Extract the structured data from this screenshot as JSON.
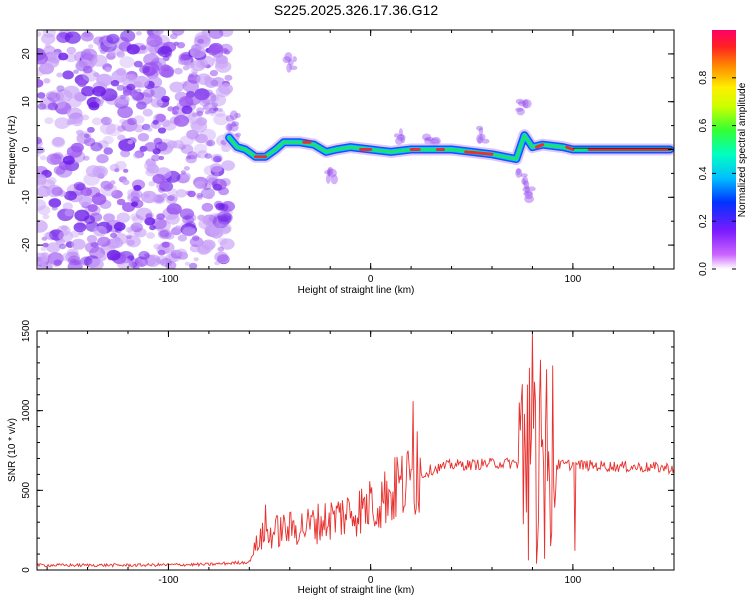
{
  "figure": {
    "title": "S225.2025.326.17.36.G12"
  },
  "colors": {
    "snr_line": "#e8312e",
    "axis": "#000000",
    "track_core": "#e8312e",
    "track_mid": "#21e06a",
    "track_edge": "#1a4dff",
    "noise": "#8a40f0"
  },
  "chart_data": [
    {
      "type": "heatmap",
      "title": "S225.2025.326.17.36.G12",
      "xlabel": "Height of straight line (km)",
      "ylabel": "Frequency (Hz)",
      "xlim": [
        -165,
        150
      ],
      "ylim": [
        -25,
        25
      ],
      "xticks": [
        -100,
        0,
        100
      ],
      "yticks": [
        -20,
        -10,
        0,
        10,
        20
      ],
      "noise_region_x": [
        -165,
        -70
      ],
      "track_centerline": [
        {
          "x": -70,
          "y": 2.5
        },
        {
          "x": -66,
          "y": 0.5
        },
        {
          "x": -62,
          "y": 0
        },
        {
          "x": -57,
          "y": -1.5
        },
        {
          "x": -52,
          "y": -1.5
        },
        {
          "x": -47,
          "y": 0
        },
        {
          "x": -43,
          "y": 1.5
        },
        {
          "x": -35,
          "y": 1.5
        },
        {
          "x": -28,
          "y": 1
        },
        {
          "x": -22,
          "y": -0.5
        },
        {
          "x": -17,
          "y": 0
        },
        {
          "x": -10,
          "y": 0.5
        },
        {
          "x": 0,
          "y": 0
        },
        {
          "x": 10,
          "y": -0.5
        },
        {
          "x": 20,
          "y": 0
        },
        {
          "x": 30,
          "y": 0
        },
        {
          "x": 40,
          "y": 0
        },
        {
          "x": 50,
          "y": -0.5
        },
        {
          "x": 60,
          "y": -1
        },
        {
          "x": 66,
          "y": -1.5
        },
        {
          "x": 72,
          "y": -2
        },
        {
          "x": 76,
          "y": 3
        },
        {
          "x": 80,
          "y": 0.5
        },
        {
          "x": 85,
          "y": 1
        },
        {
          "x": 95,
          "y": 0.5
        },
        {
          "x": 100,
          "y": 0
        },
        {
          "x": 110,
          "y": 0
        },
        {
          "x": 120,
          "y": 0
        },
        {
          "x": 135,
          "y": 0
        },
        {
          "x": 148,
          "y": 0
        }
      ],
      "colorbar": {
        "label": "Normalized spectral amplitude",
        "ticks": [
          0.0,
          0.2,
          0.4,
          0.6,
          0.8
        ],
        "range": [
          0,
          1
        ]
      }
    },
    {
      "type": "line",
      "xlabel": "Height of straight line (km)",
      "ylabel": "SNR (10 * v/v)",
      "xlim": [
        -165,
        150
      ],
      "ylim": [
        0,
        1500
      ],
      "xticks": [
        -100,
        0,
        100
      ],
      "yticks": [
        0,
        500,
        1000,
        1500
      ],
      "series": [
        {
          "name": "SNR",
          "envelope": [
            {
              "x": -165,
              "y": 30
            },
            {
              "x": -120,
              "y": 30
            },
            {
              "x": -80,
              "y": 35
            },
            {
              "x": -60,
              "y": 50
            },
            {
              "x": -55,
              "y": 200
            },
            {
              "x": -45,
              "y": 250
            },
            {
              "x": -30,
              "y": 280
            },
            {
              "x": -20,
              "y": 320
            },
            {
              "x": -10,
              "y": 360
            },
            {
              "x": 0,
              "y": 400
            },
            {
              "x": 10,
              "y": 480
            },
            {
              "x": 20,
              "y": 560
            },
            {
              "x": 30,
              "y": 630
            },
            {
              "x": 40,
              "y": 660
            },
            {
              "x": 50,
              "y": 660
            },
            {
              "x": 60,
              "y": 670
            },
            {
              "x": 70,
              "y": 670
            },
            {
              "x": 85,
              "y": 660
            },
            {
              "x": 100,
              "y": 660
            },
            {
              "x": 120,
              "y": 650
            },
            {
              "x": 150,
              "y": 640
            }
          ],
          "spikes": [
            {
              "x": -52,
              "y": 410
            },
            {
              "x": -40,
              "y": 360
            },
            {
              "x": -28,
              "y": 330
            },
            {
              "x": -15,
              "y": 420
            },
            {
              "x": 0,
              "y": 480
            },
            {
              "x": 8,
              "y": 560
            },
            {
              "x": 13,
              "y": 710
            },
            {
              "x": 21,
              "y": 1060
            },
            {
              "x": 23,
              "y": 870
            },
            {
              "x": 76,
              "y": 980
            },
            {
              "x": 80,
              "y": 1500
            },
            {
              "x": 84,
              "y": 1320
            },
            {
              "x": 87,
              "y": 1260
            },
            {
              "x": 101,
              "y": 110
            }
          ],
          "dips": [
            {
              "x": 78,
              "y": 60
            },
            {
              "x": 82,
              "y": 40
            },
            {
              "x": 86,
              "y": 70
            },
            {
              "x": 89,
              "y": 150
            },
            {
              "x": 101,
              "y": 120
            }
          ]
        }
      ]
    }
  ]
}
